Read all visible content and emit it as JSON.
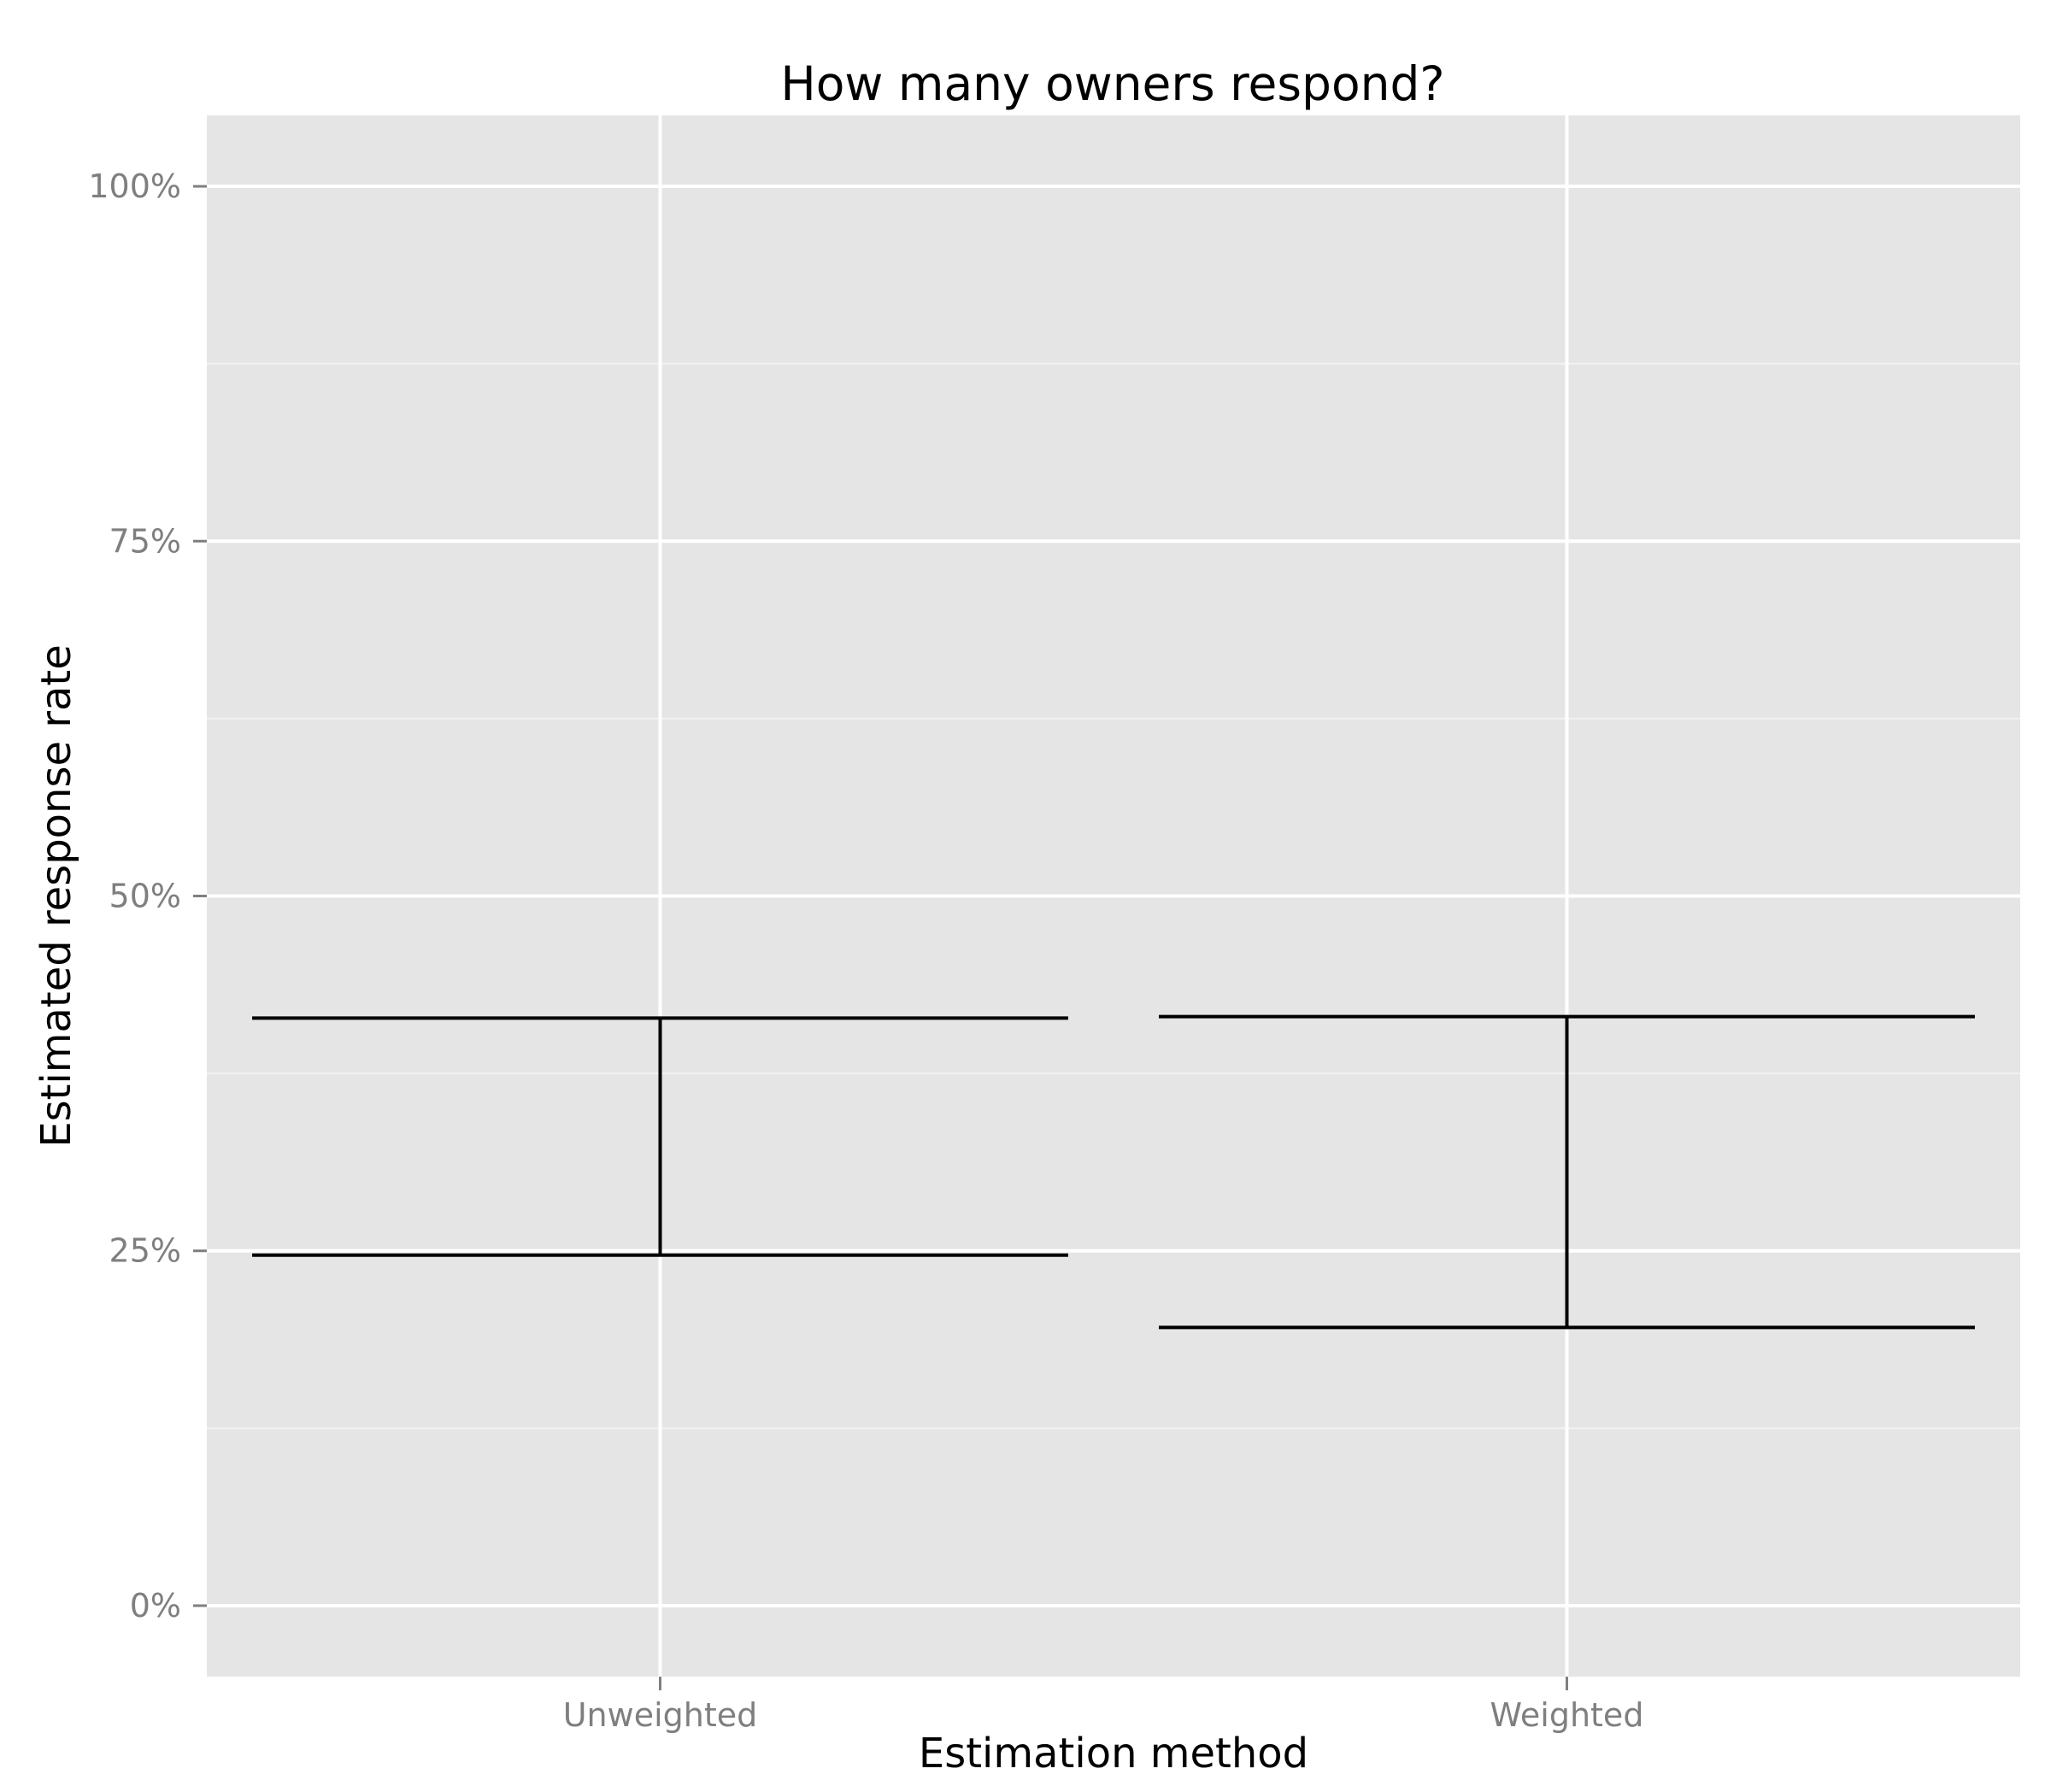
{
  "chart_data": {
    "type": "errorbar",
    "title": "How many owners respond?",
    "xlabel": "Estimation method",
    "ylabel": "Estimated response rate",
    "categories": [
      "Unweighted",
      "Weighted"
    ],
    "intervals": [
      {
        "category": "Unweighted",
        "lower": 24.7,
        "upper": 41.4
      },
      {
        "category": "Weighted",
        "lower": 19.6,
        "upper": 41.5
      }
    ],
    "y_ticks": [
      0,
      25,
      50,
      75,
      100
    ],
    "y_tick_labels": [
      "0%",
      "25%",
      "50%",
      "75%",
      "100%"
    ],
    "ylim": [
      -5,
      105
    ],
    "y_unit": "%",
    "grid": true,
    "colors": {
      "panel_background": "#e5e5e5",
      "grid_major": "#ffffff",
      "grid_minor": "#f2f2f2",
      "marks": "#000000",
      "tick_labels": "#7f7f7f"
    }
  }
}
